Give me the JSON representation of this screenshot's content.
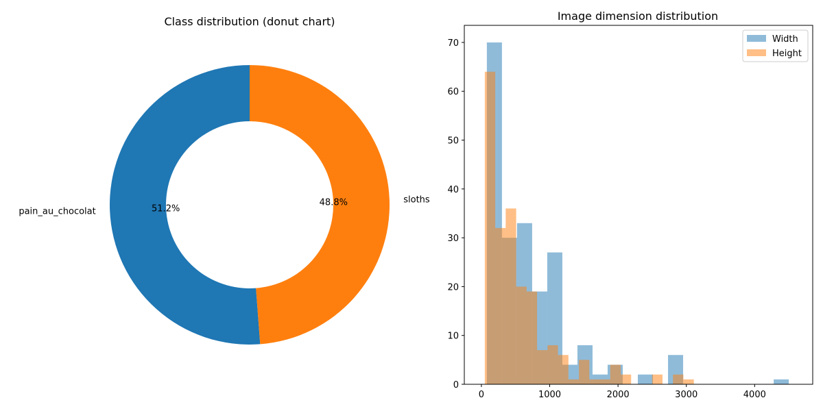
{
  "chart_data": [
    {
      "type": "donut",
      "title": "Class distribution (donut chart)",
      "categories": [
        "pain_au_chocolat",
        "sloths"
      ],
      "percent_labels": [
        "51.2%",
        "48.8%"
      ],
      "values": [
        51.2,
        48.8
      ],
      "colors": [
        "#1f77b4",
        "#ff7f0e"
      ],
      "start_angle_deg": 90,
      "direction": "counterclockwise"
    },
    {
      "type": "histogram",
      "title": "Image dimension distribution",
      "xlabel": "",
      "ylabel": "",
      "xlim": [
        -250,
        4850
      ],
      "ylim": [
        0,
        73.5
      ],
      "xticks": [
        0,
        1000,
        2000,
        3000,
        4000
      ],
      "yticks": [
        0,
        10,
        20,
        30,
        40,
        50,
        60,
        70
      ],
      "grid": false,
      "legend_position": "top-right",
      "series": [
        {
          "name": "Width",
          "color": "#1f77b4",
          "alpha": 0.5,
          "bin_width": 221,
          "bins_start": [
            80,
            301,
            522,
            743,
            964,
            1185,
            1406,
            1627,
            1848,
            2069,
            2290,
            2511,
            2732,
            2953,
            3174,
            3395,
            3616,
            3837,
            4058,
            4279
          ],
          "counts": [
            70,
            30,
            33,
            19,
            27,
            4,
            8,
            2,
            4,
            0,
            2,
            0,
            6,
            0,
            0,
            0,
            0,
            0,
            0,
            1
          ]
        },
        {
          "name": "Height",
          "color": "#ff7f0e",
          "alpha": 0.5,
          "bin_width": 153,
          "bins_start": [
            50,
            203,
            356,
            509,
            662,
            815,
            968,
            1121,
            1274,
            1427,
            1580,
            1733,
            1886,
            2039,
            2192,
            2345,
            2498,
            2651,
            2804,
            2957
          ],
          "counts": [
            64,
            32,
            36,
            20,
            19,
            7,
            8,
            6,
            1,
            5,
            1,
            1,
            4,
            2,
            0,
            0,
            2,
            0,
            2,
            1
          ]
        }
      ]
    }
  ]
}
